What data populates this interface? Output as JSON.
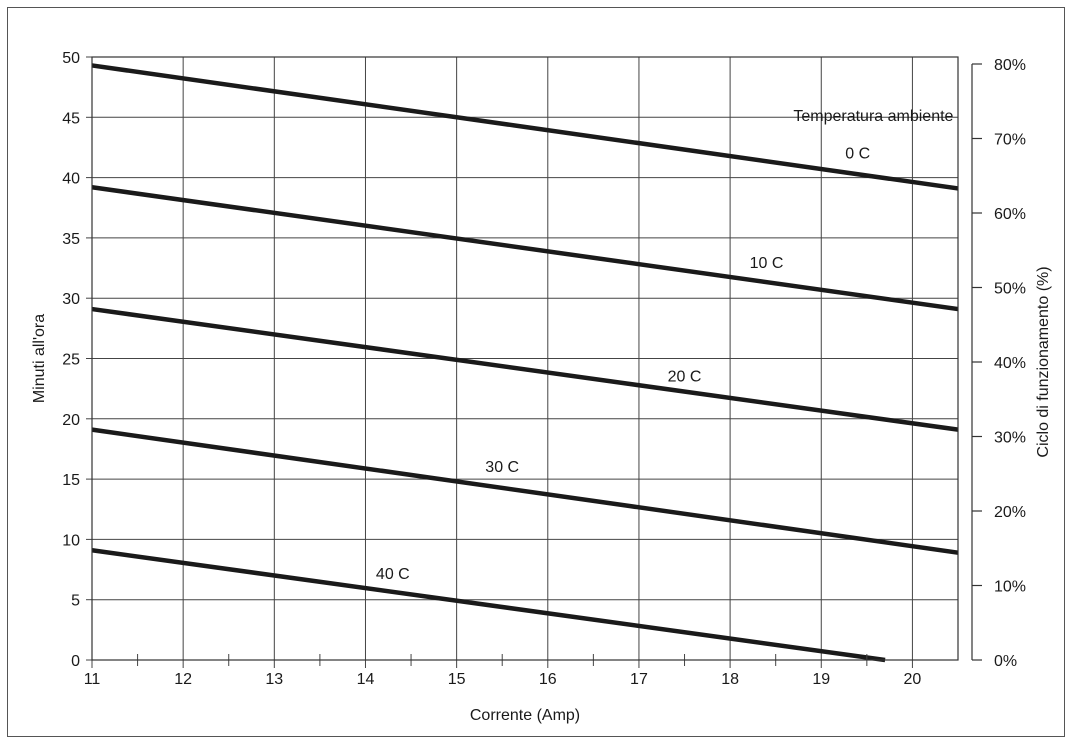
{
  "chart_data": {
    "type": "line",
    "title": "",
    "xlabel": "Corrente (Amp)",
    "ylabel": "Minuti all'ora",
    "y2label": "Ciclo di funzionamento (%)",
    "xlim": [
      11,
      20.5
    ],
    "ylim": [
      0,
      50
    ],
    "grid": true,
    "x_ticks": [
      11,
      12,
      13,
      14,
      15,
      16,
      17,
      18,
      19,
      20
    ],
    "y_ticks": [
      0,
      5,
      10,
      15,
      20,
      25,
      30,
      35,
      40,
      45,
      50
    ],
    "y2_ticks": [
      "0%",
      "10%",
      "20%",
      "30%",
      "40%",
      "50%",
      "60%",
      "70%",
      "80%"
    ],
    "series_header": "Temperatura ambiente",
    "series": [
      {
        "name": "0 C",
        "x": [
          11,
          20.5
        ],
        "y": [
          49.3,
          39.1
        ]
      },
      {
        "name": "10 C",
        "x": [
          11,
          20.5
        ],
        "y": [
          39.2,
          29.1
        ]
      },
      {
        "name": "20 C",
        "x": [
          11,
          20.5
        ],
        "y": [
          29.1,
          19.1
        ]
      },
      {
        "name": "30 C",
        "x": [
          11,
          20.5
        ],
        "y": [
          19.1,
          8.9
        ]
      },
      {
        "name": "40 C",
        "x": [
          11,
          19.7
        ],
        "y": [
          9.1,
          0
        ]
      }
    ],
    "line_color": "#1a1a1a"
  }
}
